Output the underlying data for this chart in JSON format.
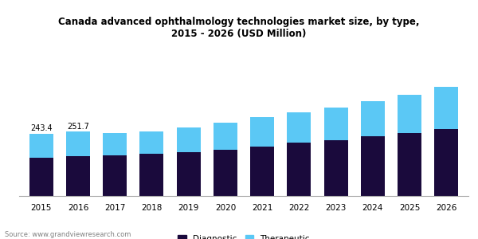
{
  "title": "Canada advanced ophthalmology technologies market size, by type,\n2015 - 2026 (USD Million)",
  "years": [
    2015,
    2016,
    2017,
    2018,
    2019,
    2020,
    2021,
    2022,
    2023,
    2024,
    2025,
    2026
  ],
  "diagnostic": [
    148,
    155,
    160,
    165,
    172,
    182,
    193,
    207,
    218,
    232,
    246,
    260
  ],
  "therapeutic": [
    95.4,
    96.7,
    85,
    88,
    95,
    105,
    115,
    120,
    128,
    138,
    148,
    165
  ],
  "totals": [
    243.4,
    251.7,
    null,
    null,
    null,
    null,
    null,
    null,
    null,
    null,
    null,
    null
  ],
  "bar_width": 0.65,
  "diagnostic_color": "#1a0a3c",
  "therapeutic_color": "#5bc8f5",
  "background_color": "#ffffff",
  "title_fontsize": 8.5,
  "tick_fontsize": 7.5,
  "legend_fontsize": 7.5,
  "source_text": "Source: www.grandviewresearch.com",
  "ylim": [
    0,
    560
  ]
}
